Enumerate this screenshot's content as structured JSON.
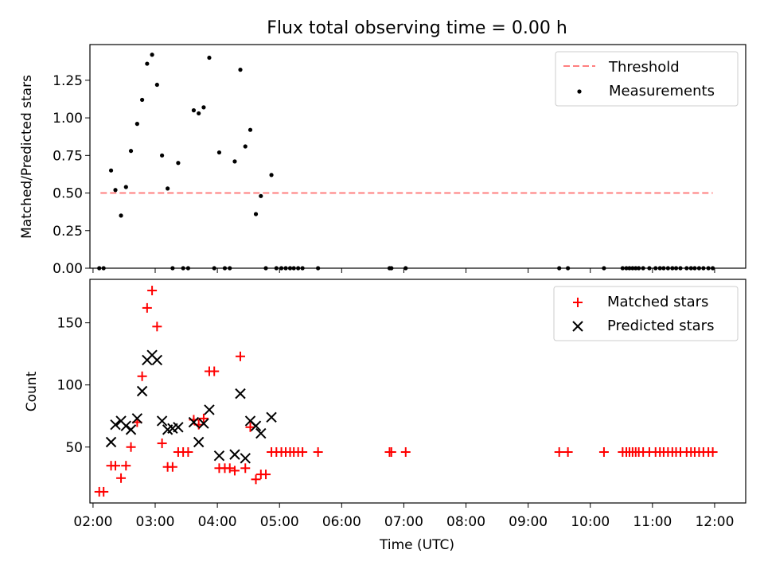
{
  "chart_data": [
    {
      "type": "scatter",
      "title": "Flux total observing time = 0.00 h",
      "xlabel": "",
      "ylabel": "Matched/Predicted stars",
      "xlim": [
        1.95,
        12.5
      ],
      "ylim": [
        0,
        1.4875
      ],
      "yticks": [
        0,
        0.25,
        0.5,
        0.75,
        1.0,
        1.25
      ],
      "ytick_labels": [
        "0.00",
        "0.25",
        "0.50",
        "0.75",
        "1.00",
        "1.25"
      ],
      "xticks": [
        2,
        3,
        4,
        5,
        6,
        7,
        8,
        9,
        10,
        11,
        12
      ],
      "show_xtick_labels": false,
      "grid": false,
      "legend": {
        "position": "upper right",
        "entries": [
          {
            "label": "Threshold",
            "kind": "dashed-line",
            "color": "#ff7f7f"
          },
          {
            "label": "Measurements",
            "kind": "dot",
            "color": "#000000"
          }
        ]
      },
      "threshold": {
        "name": "Threshold",
        "y": 0.5,
        "x_range": [
          2.12,
          11.97
        ],
        "color": "#ff7f7f",
        "style": "dashed"
      },
      "series": [
        {
          "name": "Measurements",
          "marker": "dot",
          "color": "#000000",
          "x": [
            2.1,
            2.17,
            2.29,
            2.36,
            2.45,
            2.53,
            2.61,
            2.71,
            2.79,
            2.87,
            2.95,
            3.03,
            3.11,
            3.2,
            3.28,
            3.37,
            3.45,
            3.53,
            3.62,
            3.7,
            3.78,
            3.87,
            3.95,
            4.03,
            4.12,
            4.2,
            4.28,
            4.37,
            4.45,
            4.53,
            4.62,
            4.7,
            4.78,
            4.87,
            4.95,
            5.03,
            5.1,
            5.17,
            5.23,
            5.3,
            5.37,
            5.62,
            6.77,
            6.8,
            7.03,
            9.5,
            9.64,
            10.22,
            10.52,
            10.58,
            10.63,
            10.68,
            10.73,
            10.78,
            10.85,
            10.95,
            11.05,
            11.12,
            11.18,
            11.25,
            11.32,
            11.38,
            11.45,
            11.55,
            11.62,
            11.68,
            11.75,
            11.82,
            11.9,
            11.97
          ],
          "y": [
            0,
            0,
            0.65,
            0.52,
            0.35,
            0.54,
            0.78,
            0.96,
            1.12,
            1.36,
            1.42,
            1.22,
            0.75,
            0.53,
            0,
            0.7,
            0,
            0,
            1.05,
            1.03,
            1.07,
            1.4,
            0,
            0.77,
            0,
            0,
            0.71,
            1.32,
            0.81,
            0.92,
            0.36,
            0.48,
            0,
            0.62,
            0,
            0,
            0,
            0,
            0,
            0,
            0,
            0,
            0,
            0,
            0,
            0,
            0,
            0,
            0,
            0,
            0,
            0,
            0,
            0,
            0,
            0,
            0,
            0,
            0,
            0,
            0,
            0,
            0,
            0,
            0,
            0,
            0,
            0,
            0,
            0
          ]
        }
      ]
    },
    {
      "type": "scatter",
      "title": "",
      "xlabel": "Time (UTC)",
      "ylabel": "Count",
      "xlim": [
        1.95,
        12.5
      ],
      "ylim": [
        5,
        185
      ],
      "yticks": [
        50,
        100,
        150
      ],
      "ytick_labels": [
        "50",
        "100",
        "150"
      ],
      "xticks": [
        2,
        3,
        4,
        5,
        6,
        7,
        8,
        9,
        10,
        11,
        12
      ],
      "xtick_labels": [
        "02:00",
        "03:00",
        "04:00",
        "05:00",
        "06:00",
        "07:00",
        "08:00",
        "09:00",
        "10:00",
        "11:00",
        "12:00"
      ],
      "grid": false,
      "legend": {
        "position": "upper right",
        "entries": [
          {
            "label": "Matched stars",
            "kind": "plus",
            "color": "#ff0000"
          },
          {
            "label": "Predicted stars",
            "kind": "x",
            "color": "#000000"
          }
        ]
      },
      "series": [
        {
          "name": "Matched stars",
          "marker": "plus",
          "color": "#ff0000",
          "x": [
            2.1,
            2.17,
            2.29,
            2.36,
            2.45,
            2.53,
            2.61,
            2.71,
            2.79,
            2.87,
            2.95,
            3.03,
            3.11,
            3.2,
            3.28,
            3.37,
            3.45,
            3.53,
            3.62,
            3.7,
            3.78,
            3.87,
            3.95,
            4.03,
            4.12,
            4.2,
            4.28,
            4.37,
            4.45,
            4.53,
            4.62,
            4.7,
            4.78,
            4.87,
            4.95,
            5.03,
            5.1,
            5.17,
            5.23,
            5.3,
            5.37,
            5.62,
            6.77,
            6.8,
            7.03,
            9.5,
            9.64,
            10.22,
            10.52,
            10.58,
            10.63,
            10.68,
            10.73,
            10.78,
            10.85,
            10.95,
            11.05,
            11.12,
            11.18,
            11.25,
            11.32,
            11.38,
            11.45,
            11.55,
            11.62,
            11.68,
            11.75,
            11.82,
            11.9,
            11.97
          ],
          "y": [
            14,
            14,
            35,
            35,
            25,
            35,
            50,
            70,
            107,
            162,
            176,
            147,
            53,
            34,
            34,
            46,
            46,
            46,
            72,
            68,
            73,
            111,
            111,
            33,
            33,
            33,
            31,
            123,
            33,
            66,
            24,
            28,
            28,
            46,
            46,
            46,
            46,
            46,
            46,
            46,
            46,
            46,
            46,
            46,
            46,
            46,
            46,
            46,
            46,
            46,
            46,
            46,
            46,
            46,
            46,
            46,
            46,
            46,
            46,
            46,
            46,
            46,
            46,
            46,
            46,
            46,
            46,
            46,
            46,
            46
          ]
        },
        {
          "name": "Predicted stars",
          "marker": "x",
          "color": "#000000",
          "x": [
            2.29,
            2.36,
            2.45,
            2.53,
            2.61,
            2.71,
            2.79,
            2.87,
            2.95,
            3.03,
            3.11,
            3.2,
            3.28,
            3.37,
            3.62,
            3.7,
            3.78,
            3.87,
            4.03,
            4.28,
            4.37,
            4.45,
            4.53,
            4.62,
            4.7,
            4.87
          ],
          "y": [
            54,
            68,
            71,
            67,
            64,
            73,
            95,
            120,
            124,
            120,
            71,
            64,
            65,
            66,
            70,
            54,
            69,
            80,
            43,
            44,
            93,
            41,
            71,
            67,
            61,
            74
          ]
        }
      ]
    }
  ]
}
